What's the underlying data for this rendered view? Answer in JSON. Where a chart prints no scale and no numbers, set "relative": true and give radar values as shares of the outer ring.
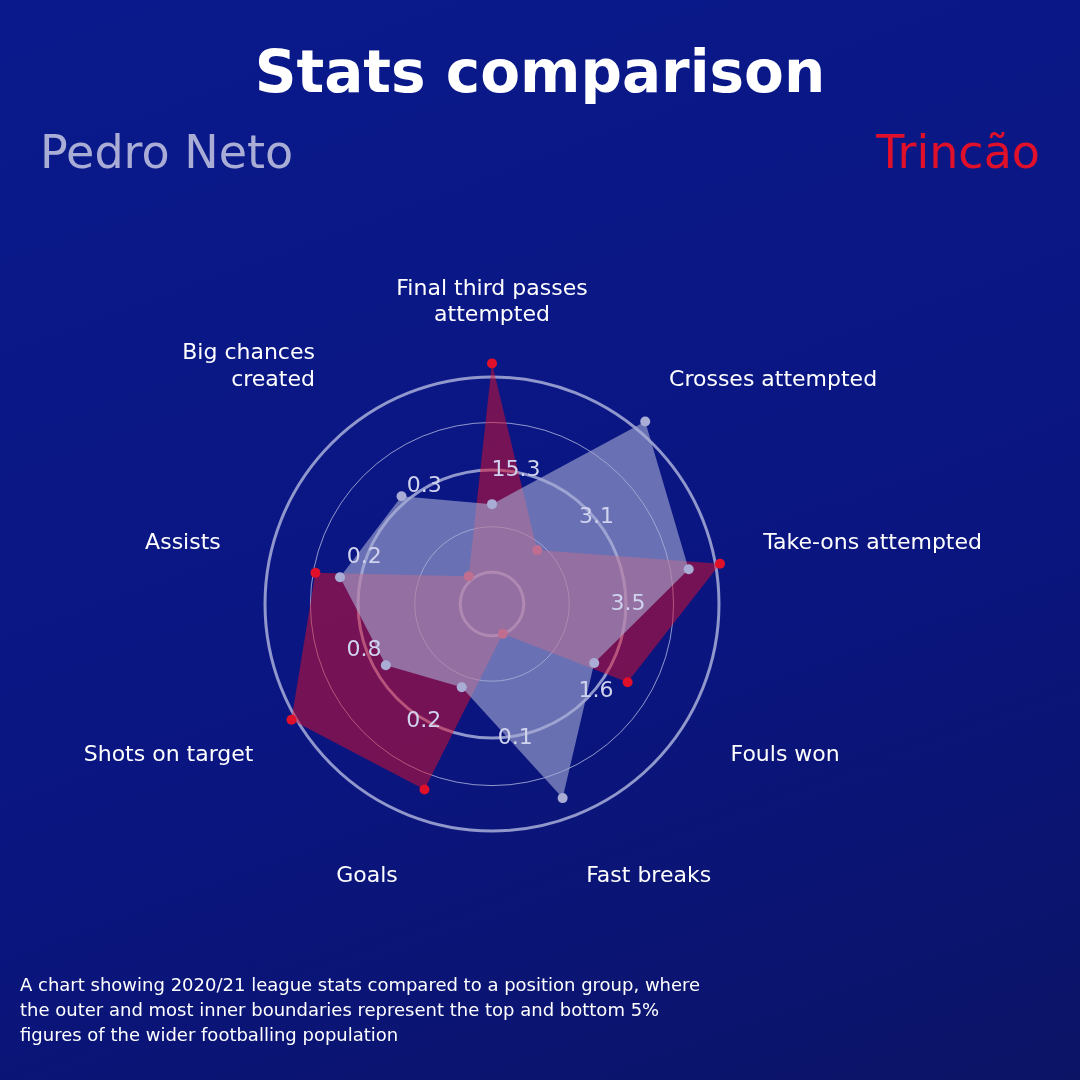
{
  "chart_data": {
    "type": "radar",
    "title": "Stats comparison",
    "relative": true,
    "grid": true,
    "legend": "top",
    "marker": "circle",
    "categories": [
      "Final third passes attempted",
      "Crosses attempted",
      "Take-ons attempted",
      "Fouls won",
      "Fast breaks",
      "Goals",
      "Shots on target",
      "Assists",
      "Big chances created"
    ],
    "series": [
      {
        "name": "Pedro Neto",
        "color": "#a9add6",
        "values": [
          0.44,
          1.05,
          0.88,
          0.52,
          0.91,
          0.39,
          0.54,
          0.68,
          0.62
        ]
      },
      {
        "name": "Trincão",
        "color": "#e0102a",
        "values": [
          1.06,
          0.31,
          1.02,
          0.69,
          0.14,
          0.87,
          1.02,
          0.79,
          0.16
        ]
      }
    ],
    "annotations": [
      {
        "text": "15.3",
        "x": "Final third passes attempted"
      },
      {
        "text": "3.1",
        "x": "Crosses attempted"
      },
      {
        "text": "3.5",
        "x": "Take-ons attempted"
      },
      {
        "text": "1.6",
        "x": "Fouls won"
      },
      {
        "text": "0.1",
        "x": "Fast breaks"
      },
      {
        "text": "0.2",
        "x": "Goals"
      },
      {
        "text": "0.8",
        "x": "Shots on target"
      },
      {
        "text": "0.2",
        "x": "Assists"
      },
      {
        "text": "0.3",
        "x": "Big chances created"
      },
      "A chart showing 2020/21 league stats compared to a position group, where the outer and most inner boundaries represent the top and bottom 5% figures of the wider footballing population"
    ]
  }
}
